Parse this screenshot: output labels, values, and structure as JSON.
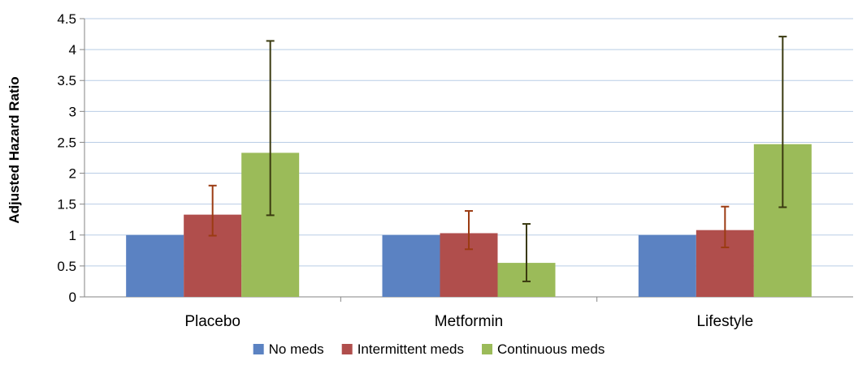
{
  "chart_data": {
    "type": "bar",
    "title": "",
    "xlabel": "",
    "ylabel": "Adjusted Hazard Ratio",
    "categories": [
      "Placebo",
      "Metformin",
      "Lifestyle"
    ],
    "ylim": [
      0,
      4.5
    ],
    "yticks": [
      "0",
      "0.5",
      "1",
      "1.5",
      "2",
      "2.5",
      "3",
      "3.5",
      "4",
      "4.5"
    ],
    "grid": true,
    "legend_position": "bottom",
    "series": [
      {
        "name": "No meds",
        "color": "#5B82C2",
        "values": [
          1,
          1,
          1
        ]
      },
      {
        "name": "Intermittent meds",
        "color": "#B04E4C",
        "values": [
          1.33,
          1.03,
          1.08
        ],
        "error_low": [
          0.99,
          0.77,
          0.8
        ],
        "error_high": [
          1.8,
          1.39,
          1.46
        ],
        "error_color": "#9B3B12"
      },
      {
        "name": "Continuous meds",
        "color": "#9BBB59",
        "values": [
          2.33,
          0.55,
          2.47
        ],
        "error_low": [
          1.32,
          0.25,
          1.45
        ],
        "error_high": [
          4.14,
          1.18,
          4.21
        ],
        "error_color": "#3A3A10"
      }
    ]
  }
}
